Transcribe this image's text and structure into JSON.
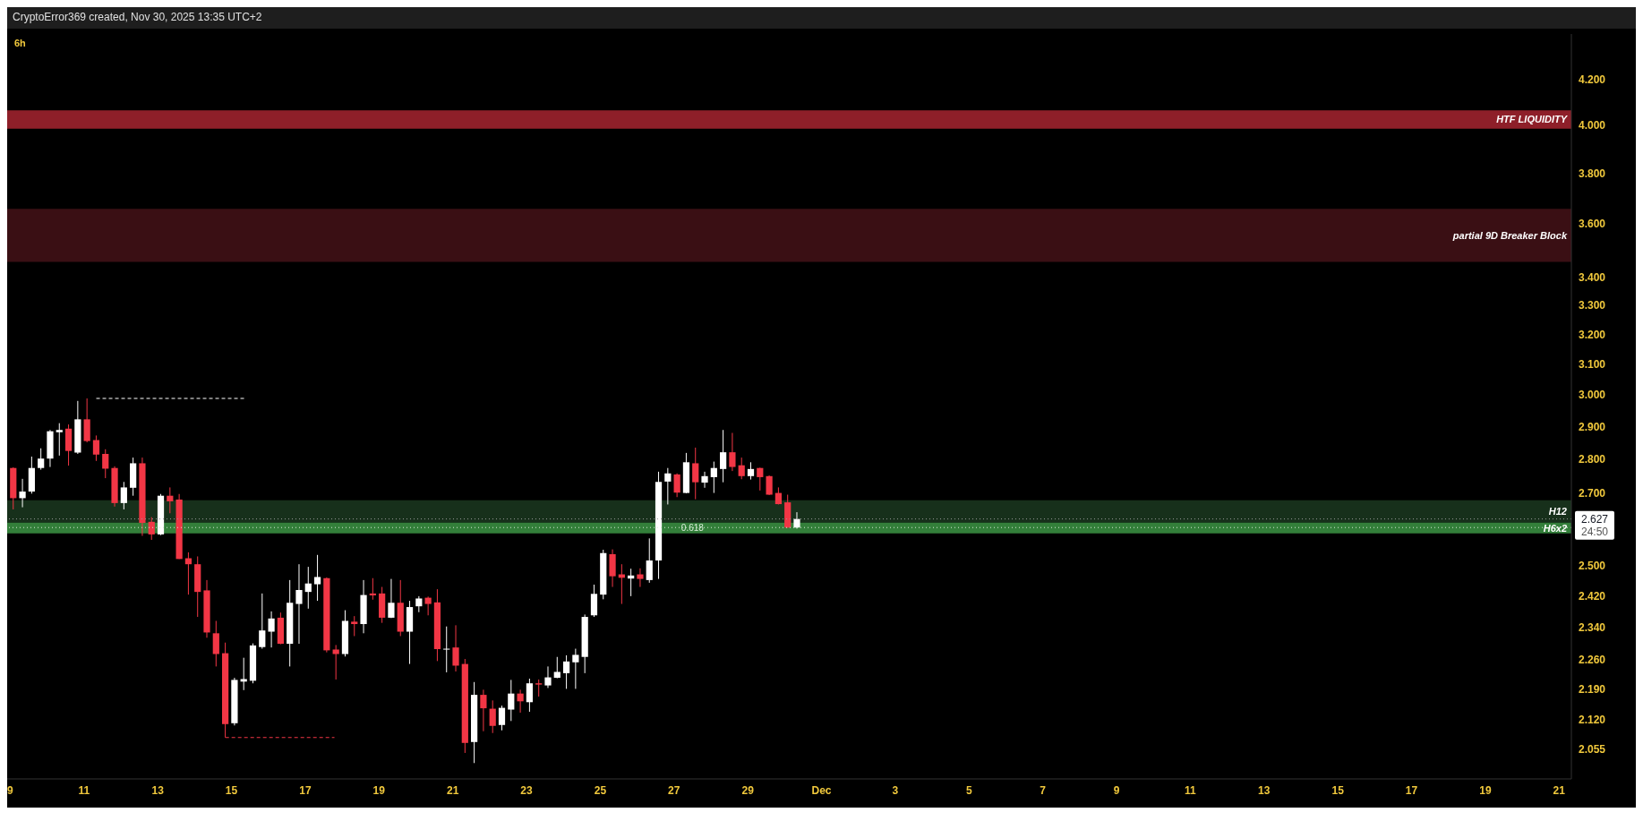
{
  "chart_data": {
    "type": "candlestick",
    "title": "6h",
    "subtitle": "CryptoError369 created, Nov 30, 2025 13:35 UTC+2",
    "x": [
      "2025-11-09T02:00",
      "2025-11-09T08:00",
      "2025-11-09T14:00",
      "2025-11-09T20:00",
      "2025-11-10T02:00",
      "2025-11-10T08:00",
      "2025-11-10T14:00",
      "2025-11-10T20:00",
      "2025-11-11T02:00",
      "2025-11-11T08:00",
      "2025-11-11T14:00",
      "2025-11-11T20:00",
      "2025-11-12T02:00",
      "2025-11-12T08:00",
      "2025-11-12T14:00",
      "2025-11-12T20:00",
      "2025-11-13T02:00",
      "2025-11-13T08:00",
      "2025-11-13T14:00",
      "2025-11-13T20:00",
      "2025-11-14T02:00",
      "2025-11-14T08:00",
      "2025-11-14T14:00",
      "2025-11-14T20:00",
      "2025-11-15T02:00",
      "2025-11-15T08:00",
      "2025-11-15T14:00",
      "2025-11-15T20:00",
      "2025-11-16T02:00",
      "2025-11-16T08:00",
      "2025-11-16T14:00",
      "2025-11-16T20:00",
      "2025-11-17T02:00",
      "2025-11-17T08:00",
      "2025-11-17T14:00",
      "2025-11-17T20:00",
      "2025-11-18T02:00",
      "2025-11-18T08:00",
      "2025-11-18T14:00",
      "2025-11-18T20:00",
      "2025-11-19T02:00",
      "2025-11-19T08:00",
      "2025-11-19T14:00",
      "2025-11-19T20:00",
      "2025-11-20T02:00",
      "2025-11-20T08:00",
      "2025-11-20T14:00",
      "2025-11-20T20:00",
      "2025-11-21T02:00",
      "2025-11-21T08:00",
      "2025-11-21T14:00",
      "2025-11-21T20:00",
      "2025-11-22T02:00",
      "2025-11-22T08:00",
      "2025-11-22T14:00",
      "2025-11-22T20:00",
      "2025-11-23T02:00",
      "2025-11-23T08:00",
      "2025-11-23T14:00",
      "2025-11-23T20:00",
      "2025-11-24T02:00",
      "2025-11-24T08:00",
      "2025-11-24T14:00",
      "2025-11-24T20:00",
      "2025-11-25T02:00",
      "2025-11-25T08:00",
      "2025-11-25T14:00",
      "2025-11-25T20:00",
      "2025-11-26T02:00",
      "2025-11-26T08:00",
      "2025-11-26T14:00",
      "2025-11-26T20:00",
      "2025-11-27T02:00",
      "2025-11-27T08:00",
      "2025-11-27T14:00",
      "2025-11-27T20:00",
      "2025-11-28T02:00",
      "2025-11-28T08:00",
      "2025-11-28T14:00",
      "2025-11-28T20:00",
      "2025-11-29T02:00",
      "2025-11-29T08:00",
      "2025-11-29T14:00",
      "2025-11-29T20:00",
      "2025-11-30T02:00",
      "2025-11-30T08:00"
    ],
    "ohlc": [
      [
        2.774,
        2.776,
        2.654,
        2.686
      ],
      [
        2.686,
        2.742,
        2.66,
        2.705
      ],
      [
        2.705,
        2.808,
        2.699,
        2.774
      ],
      [
        2.774,
        2.833,
        2.769,
        2.802
      ],
      [
        2.802,
        2.889,
        2.777,
        2.885
      ],
      [
        2.882,
        2.91,
        2.811,
        2.889
      ],
      [
        2.893,
        2.906,
        2.781,
        2.825
      ],
      [
        2.82,
        2.98,
        2.816,
        2.922
      ],
      [
        2.922,
        2.988,
        2.851,
        2.855
      ],
      [
        2.858,
        2.872,
        2.795,
        2.814
      ],
      [
        2.816,
        2.83,
        2.744,
        2.772
      ],
      [
        2.774,
        2.779,
        2.662,
        2.672
      ],
      [
        2.672,
        2.733,
        2.654,
        2.717
      ],
      [
        2.716,
        2.805,
        2.693,
        2.788
      ],
      [
        2.788,
        2.805,
        2.58,
        2.616
      ],
      [
        2.619,
        2.632,
        2.569,
        2.584
      ],
      [
        2.584,
        2.698,
        2.582,
        2.693
      ],
      [
        2.693,
        2.717,
        2.643,
        2.677
      ],
      [
        2.682,
        2.698,
        2.517,
        2.517
      ],
      [
        2.519,
        2.535,
        2.423,
        2.503
      ],
      [
        2.503,
        2.524,
        2.366,
        2.43
      ],
      [
        2.434,
        2.461,
        2.314,
        2.327
      ],
      [
        2.325,
        2.356,
        2.244,
        2.274
      ],
      [
        2.276,
        2.302,
        2.08,
        2.11
      ],
      [
        2.112,
        2.217,
        2.107,
        2.212
      ],
      [
        2.208,
        2.265,
        2.188,
        2.214
      ],
      [
        2.21,
        2.3,
        2.204,
        2.295
      ],
      [
        2.291,
        2.426,
        2.287,
        2.332
      ],
      [
        2.329,
        2.38,
        2.29,
        2.362
      ],
      [
        2.364,
        2.377,
        2.298,
        2.299
      ],
      [
        2.299,
        2.461,
        2.244,
        2.402
      ],
      [
        2.399,
        2.503,
        2.299,
        2.435
      ],
      [
        2.43,
        2.496,
        2.387,
        2.452
      ],
      [
        2.45,
        2.528,
        2.407,
        2.469
      ],
      [
        2.466,
        2.468,
        2.278,
        2.283
      ],
      [
        2.285,
        2.296,
        2.213,
        2.274
      ],
      [
        2.274,
        2.383,
        2.268,
        2.356
      ],
      [
        2.354,
        2.368,
        2.318,
        2.348
      ],
      [
        2.348,
        2.461,
        2.325,
        2.422
      ],
      [
        2.426,
        2.466,
        2.41,
        2.421
      ],
      [
        2.426,
        2.443,
        2.351,
        2.364
      ],
      [
        2.364,
        2.464,
        2.363,
        2.402
      ],
      [
        2.402,
        2.461,
        2.318,
        2.329
      ],
      [
        2.329,
        2.407,
        2.25,
        2.391
      ],
      [
        2.393,
        2.419,
        2.378,
        2.413
      ],
      [
        2.415,
        2.418,
        2.37,
        2.399
      ],
      [
        2.403,
        2.437,
        2.257,
        2.286
      ],
      [
        2.285,
        2.342,
        2.23,
        2.287
      ],
      [
        2.29,
        2.345,
        2.232,
        2.246
      ],
      [
        2.25,
        2.262,
        2.046,
        2.068
      ],
      [
        2.07,
        2.207,
        2.024,
        2.177
      ],
      [
        2.177,
        2.189,
        2.094,
        2.146
      ],
      [
        2.145,
        2.164,
        2.09,
        2.106
      ],
      [
        2.108,
        2.152,
        2.096,
        2.147
      ],
      [
        2.143,
        2.212,
        2.117,
        2.18
      ],
      [
        2.18,
        2.189,
        2.136,
        2.162
      ],
      [
        2.16,
        2.215,
        2.138,
        2.204
      ],
      [
        2.204,
        2.213,
        2.173,
        2.201
      ],
      [
        2.199,
        2.244,
        2.193,
        2.218
      ],
      [
        2.217,
        2.267,
        2.216,
        2.231
      ],
      [
        2.228,
        2.271,
        2.191,
        2.256
      ],
      [
        2.254,
        2.287,
        2.191,
        2.272
      ],
      [
        2.267,
        2.372,
        2.228,
        2.366
      ],
      [
        2.37,
        2.449,
        2.366,
        2.425
      ],
      [
        2.423,
        2.542,
        2.411,
        2.533
      ],
      [
        2.53,
        2.543,
        2.443,
        2.471
      ],
      [
        2.476,
        2.503,
        2.399,
        2.467
      ],
      [
        2.465,
        2.491,
        2.419,
        2.473
      ],
      [
        2.476,
        2.492,
        2.443,
        2.464
      ],
      [
        2.461,
        2.573,
        2.454,
        2.513
      ],
      [
        2.513,
        2.763,
        2.464,
        2.733
      ],
      [
        2.734,
        2.774,
        2.668,
        2.758
      ],
      [
        2.755,
        2.758,
        2.689,
        2.702
      ],
      [
        2.701,
        2.819,
        2.7,
        2.791
      ],
      [
        2.788,
        2.835,
        2.683,
        2.732
      ],
      [
        2.731,
        2.763,
        2.716,
        2.75
      ],
      [
        2.747,
        2.793,
        2.701,
        2.774
      ],
      [
        2.771,
        2.889,
        2.732,
        2.821
      ],
      [
        2.821,
        2.88,
        2.765,
        2.777
      ],
      [
        2.782,
        2.805,
        2.741,
        2.75
      ],
      [
        2.75,
        2.791,
        2.74,
        2.771
      ],
      [
        2.774,
        2.775,
        2.708,
        2.747
      ],
      [
        2.75,
        2.752,
        2.695,
        2.696
      ],
      [
        2.701,
        2.717,
        2.668,
        2.669
      ],
      [
        2.674,
        2.696,
        2.602,
        2.603
      ],
      [
        2.603,
        2.646,
        2.6,
        2.627
      ]
    ],
    "colors": [
      "#f23645",
      "#ffffff",
      "#ffffff",
      "#ffffff",
      "#ffffff",
      "#ffffff",
      "#f23645",
      "#ffffff",
      "#f23645",
      "#f23645",
      "#f23645",
      "#f23645",
      "#ffffff",
      "#ffffff",
      "#f23645",
      "#f23645",
      "#ffffff",
      "#f23645",
      "#f23645",
      "#f23645",
      "#f23645",
      "#f23645",
      "#f23645",
      "#f23645",
      "#ffffff",
      "#ffffff",
      "#ffffff",
      "#ffffff",
      "#ffffff",
      "#f23645",
      "#ffffff",
      "#ffffff",
      "#ffffff",
      "#ffffff",
      "#f23645",
      "#f23645",
      "#ffffff",
      "#f23645",
      "#ffffff",
      "#f23645",
      "#f23645",
      "#ffffff",
      "#f23645",
      "#ffffff",
      "#ffffff",
      "#f23645",
      "#f23645",
      "#ffffff",
      "#f23645",
      "#f23645",
      "#ffffff",
      "#f23645",
      "#f23645",
      "#ffffff",
      "#ffffff",
      "#f23645",
      "#ffffff",
      "#f23645",
      "#ffffff",
      "#ffffff",
      "#ffffff",
      "#ffffff",
      "#ffffff",
      "#ffffff",
      "#ffffff",
      "#f23645",
      "#f23645",
      "#ffffff",
      "#f23645",
      "#ffffff",
      "#ffffff",
      "#ffffff",
      "#f23645",
      "#ffffff",
      "#f23645",
      "#ffffff",
      "#ffffff",
      "#ffffff",
      "#f23645",
      "#f23645",
      "#ffffff",
      "#f23645",
      "#f23645",
      "#f23645",
      "#f23645",
      "#ffffff"
    ],
    "series": [
      {
        "type": "line",
        "x": [
          "2025-11-11T08:00",
          "2025-11-15T09:00"
        ],
        "values": [
          2.988,
          2.988
        ],
        "color": "#ffffff",
        "line_style": "dashed"
      },
      {
        "type": "line",
        "x": [
          "2025-11-14T20:00",
          "2025-11-17T19:00"
        ],
        "values": [
          2.08,
          2.08
        ],
        "color": "#f23645",
        "line_style": "dashed"
      }
    ],
    "bands": [
      {
        "axis": "y",
        "from": 3.986,
        "to": 4.065,
        "label": "HTF LIQUIDITY",
        "color": "#8e1f29"
      },
      {
        "axis": "y",
        "from": 3.457,
        "to": 3.659,
        "label": "partial 9D Breaker Block",
        "color": "#3a0f14"
      },
      {
        "axis": "y",
        "from": 2.617,
        "to": 2.68,
        "label": "H12",
        "color": "#17301b"
      },
      {
        "axis": "y",
        "from": 2.587,
        "to": 2.617,
        "label": "H6x2",
        "color": "#337f3a"
      }
    ],
    "ref_lines": [
      {
        "axis": "y",
        "value": 2.627,
        "label": "2.627",
        "color": "#9a9a9a",
        "line_style": "dotted"
      },
      {
        "axis": "y",
        "value": 2.603,
        "color": "#d8ecd8",
        "line_style": "dotted"
      }
    ],
    "annotations": [
      "24:50",
      {
        "text": "0.618",
        "x": "2025-11-27T12:00",
        "y": 2.603
      }
    ],
    "xlim": [
      "2025-11-08T22:00",
      "2025-12-21T08:00"
    ],
    "xticks": [
      {
        "value": "2025-11-09",
        "label": "9"
      },
      {
        "value": "2025-11-11",
        "label": "11"
      },
      {
        "value": "2025-11-13",
        "label": "13"
      },
      {
        "value": "2025-11-15",
        "label": "15"
      },
      {
        "value": "2025-11-17",
        "label": "17"
      },
      {
        "value": "2025-11-19",
        "label": "19"
      },
      {
        "value": "2025-11-21",
        "label": "21"
      },
      {
        "value": "2025-11-23",
        "label": "23"
      },
      {
        "value": "2025-11-25",
        "label": "25"
      },
      {
        "value": "2025-11-27",
        "label": "27"
      },
      {
        "value": "2025-11-29",
        "label": "29"
      },
      {
        "value": "2025-12-01",
        "label": "Dec"
      },
      {
        "value": "2025-12-03",
        "label": "3"
      },
      {
        "value": "2025-12-05",
        "label": "5"
      },
      {
        "value": "2025-12-07",
        "label": "7"
      },
      {
        "value": "2025-12-09",
        "label": "9"
      },
      {
        "value": "2025-12-11",
        "label": "11"
      },
      {
        "value": "2025-12-13",
        "label": "13"
      },
      {
        "value": "2025-12-15",
        "label": "15"
      },
      {
        "value": "2025-12-17",
        "label": "17"
      },
      {
        "value": "2025-12-19",
        "label": "19"
      },
      {
        "value": "2025-12-21",
        "label": "21"
      }
    ],
    "ylim": [
      1.99,
      4.41
    ],
    "log": true,
    "yticks": [
      {
        "value": 2.055,
        "label": "2.055"
      },
      {
        "value": 2.12,
        "label": "2.120"
      },
      {
        "value": 2.19,
        "label": "2.190"
      },
      {
        "value": 2.26,
        "label": "2.260"
      },
      {
        "value": 2.34,
        "label": "2.340"
      },
      {
        "value": 2.42,
        "label": "2.420"
      },
      {
        "value": 2.5,
        "label": "2.500"
      },
      {
        "value": 2.7,
        "label": "2.700"
      },
      {
        "value": 2.8,
        "label": "2.800"
      },
      {
        "value": 2.9,
        "label": "2.900"
      },
      {
        "value": 3.0,
        "label": "3.000"
      },
      {
        "value": 3.1,
        "label": "3.100"
      },
      {
        "value": 3.2,
        "label": "3.200"
      },
      {
        "value": 3.3,
        "label": "3.300"
      },
      {
        "value": 3.4,
        "label": "3.400"
      },
      {
        "value": 3.6,
        "label": "3.600"
      },
      {
        "value": 3.8,
        "label": "3.800"
      },
      {
        "value": 4.0,
        "label": "4.000"
      },
      {
        "value": 4.2,
        "label": "4.200"
      }
    ]
  }
}
